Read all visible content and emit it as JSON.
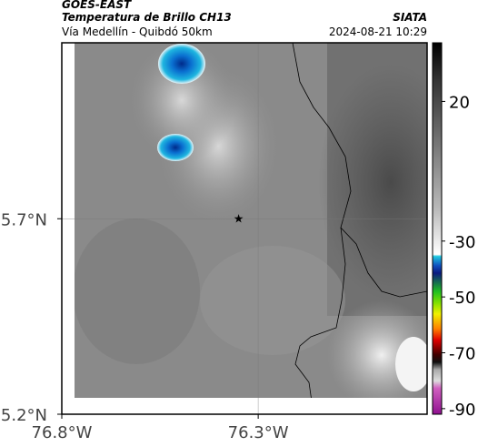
{
  "header": {
    "source": "GOES-EAST",
    "product": "Temperatura de Brillo CH13",
    "region": "Vía Medellín - Quibdó 50km",
    "agency": "SIATA",
    "timestamp": "2024-08-21 10:29"
  },
  "map": {
    "lonlim": [
      -76.8,
      -75.87
    ],
    "latlim": [
      5.2,
      6.15
    ],
    "lonticks": [
      {
        "value": -76.8,
        "label": "76.8°W"
      },
      {
        "value": -76.3,
        "label": "76.3°W"
      }
    ],
    "latticks": [
      {
        "value": 5.7,
        "label": "5.7°N"
      },
      {
        "value": 5.2,
        "label": "5.2°N"
      }
    ],
    "grid": true,
    "marker": {
      "lon": -76.35,
      "lat": 5.7
    }
  },
  "colorbar": {
    "lim": [
      -92,
      41
    ],
    "ticks": [
      20,
      -30,
      -50,
      -70,
      -90
    ]
  }
}
